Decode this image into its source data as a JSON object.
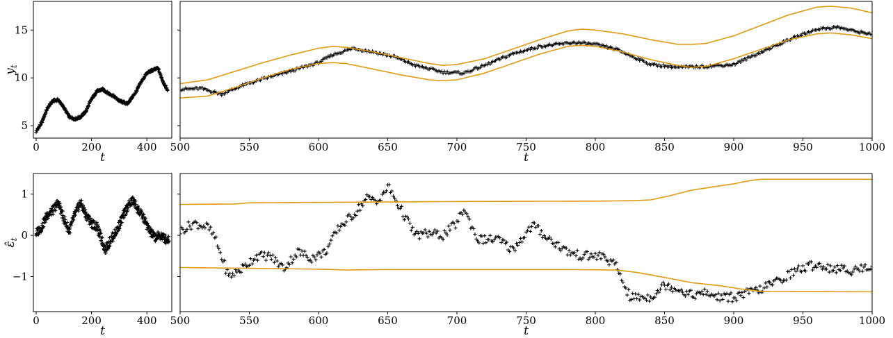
{
  "chart_data": [
    {
      "id": "top-left",
      "type": "scatter",
      "xlabel": "t",
      "ylabel": "y_t",
      "xlim": [
        -10,
        490
      ],
      "ylim": [
        3.7,
        18.0
      ],
      "xticks": [
        0,
        200,
        400
      ],
      "yticks": [
        5,
        10,
        15
      ],
      "series": [
        {
          "kind": "markers",
          "marker": "+",
          "color": "#000000",
          "anchors": [
            [
              0,
              4.4
            ],
            [
              20,
              5.3
            ],
            [
              40,
              6.8
            ],
            [
              60,
              7.6
            ],
            [
              80,
              7.7
            ],
            [
              100,
              6.9
            ],
            [
              120,
              5.9
            ],
            [
              140,
              5.7
            ],
            [
              160,
              5.9
            ],
            [
              180,
              6.5
            ],
            [
              200,
              7.8
            ],
            [
              220,
              8.6
            ],
            [
              240,
              8.8
            ],
            [
              260,
              8.4
            ],
            [
              280,
              8.1
            ],
            [
              300,
              7.6
            ],
            [
              330,
              7.3
            ],
            [
              360,
              8.5
            ],
            [
              380,
              9.6
            ],
            [
              400,
              10.5
            ],
            [
              420,
              10.8
            ],
            [
              440,
              11.0
            ],
            [
              460,
              9.5
            ],
            [
              475,
              8.7
            ]
          ]
        }
      ]
    },
    {
      "id": "top-right",
      "type": "scatter",
      "xlabel": "t",
      "ylabel": "",
      "xlim": [
        500,
        1000
      ],
      "ylim": [
        3.7,
        18.0
      ],
      "xticks": [
        500,
        550,
        600,
        650,
        700,
        750,
        800,
        850,
        900,
        950,
        1000
      ],
      "yticks": [
        5,
        10,
        15
      ],
      "series": [
        {
          "kind": "markers",
          "marker": "+",
          "color": "#000000",
          "anchors": [
            [
              500,
              8.8
            ],
            [
              515,
              8.9
            ],
            [
              530,
              8.3
            ],
            [
              545,
              9.2
            ],
            [
              560,
              9.9
            ],
            [
              575,
              10.5
            ],
            [
              600,
              11.6
            ],
            [
              610,
              12.4
            ],
            [
              625,
              13.1
            ],
            [
              640,
              12.7
            ],
            [
              655,
              12.2
            ],
            [
              670,
              11.3
            ],
            [
              690,
              10.6
            ],
            [
              705,
              10.5
            ],
            [
              720,
              11.3
            ],
            [
              740,
              12.5
            ],
            [
              760,
              13.3
            ],
            [
              785,
              13.7
            ],
            [
              800,
              13.5
            ],
            [
              815,
              13.0
            ],
            [
              840,
              11.4
            ],
            [
              860,
              11.1
            ],
            [
              880,
              11.2
            ],
            [
              900,
              11.4
            ],
            [
              920,
              12.7
            ],
            [
              940,
              14.0
            ],
            [
              960,
              15.1
            ],
            [
              975,
              15.3
            ],
            [
              990,
              14.8
            ],
            [
              1000,
              14.6
            ]
          ]
        },
        {
          "kind": "line",
          "color": "#e09a10",
          "anchors": [
            [
              500,
              9.4
            ],
            [
              520,
              9.8
            ],
            [
              540,
              10.7
            ],
            [
              560,
              11.6
            ],
            [
              580,
              12.4
            ],
            [
              600,
              13.1
            ],
            [
              610,
              13.3
            ],
            [
              620,
              13.2
            ],
            [
              640,
              12.7
            ],
            [
              660,
              12.1
            ],
            [
              680,
              11.5
            ],
            [
              690,
              11.3
            ],
            [
              700,
              11.4
            ],
            [
              720,
              12.0
            ],
            [
              740,
              13.0
            ],
            [
              760,
              14.0
            ],
            [
              780,
              14.9
            ],
            [
              790,
              15.1
            ],
            [
              800,
              15.0
            ],
            [
              820,
              14.6
            ],
            [
              840,
              14.0
            ],
            [
              860,
              13.5
            ],
            [
              870,
              13.5
            ],
            [
              880,
              13.6
            ],
            [
              900,
              14.4
            ],
            [
              920,
              15.5
            ],
            [
              940,
              16.6
            ],
            [
              960,
              17.4
            ],
            [
              970,
              17.5
            ],
            [
              985,
              17.3
            ],
            [
              1000,
              16.8
            ]
          ]
        },
        {
          "kind": "line",
          "color": "#e09a10",
          "anchors": [
            [
              500,
              7.9
            ],
            [
              520,
              8.1
            ],
            [
              540,
              9.0
            ],
            [
              560,
              10.0
            ],
            [
              580,
              10.9
            ],
            [
              600,
              11.5
            ],
            [
              610,
              11.6
            ],
            [
              620,
              11.5
            ],
            [
              640,
              10.9
            ],
            [
              660,
              10.3
            ],
            [
              680,
              9.8
            ],
            [
              690,
              9.7
            ],
            [
              700,
              9.8
            ],
            [
              720,
              10.5
            ],
            [
              740,
              11.5
            ],
            [
              760,
              12.5
            ],
            [
              780,
              13.3
            ],
            [
              790,
              13.4
            ],
            [
              800,
              13.3
            ],
            [
              820,
              12.7
            ],
            [
              840,
              11.9
            ],
            [
              860,
              11.3
            ],
            [
              870,
              11.1
            ],
            [
              880,
              11.2
            ],
            [
              900,
              12.0
            ],
            [
              920,
              13.0
            ],
            [
              940,
              14.0
            ],
            [
              960,
              14.6
            ],
            [
              970,
              14.7
            ],
            [
              985,
              14.5
            ],
            [
              1000,
              14.1
            ]
          ]
        }
      ]
    },
    {
      "id": "bottom-left",
      "type": "scatter",
      "xlabel": "t",
      "ylabel": "ε̂_t",
      "xlim": [
        -10,
        490
      ],
      "ylim": [
        -1.85,
        1.5
      ],
      "xticks": [
        0,
        200,
        400
      ],
      "yticks": [
        -1,
        0,
        1
      ],
      "series": [
        {
          "kind": "markers",
          "marker": "+",
          "color": "#000000",
          "anchors": [
            [
              0,
              0.05
            ],
            [
              20,
              0.2
            ],
            [
              40,
              0.5
            ],
            [
              60,
              0.6
            ],
            [
              80,
              0.8
            ],
            [
              100,
              0.4
            ],
            [
              120,
              0.1
            ],
            [
              140,
              0.5
            ],
            [
              160,
              0.8
            ],
            [
              180,
              0.5
            ],
            [
              200,
              0.3
            ],
            [
              220,
              0.2
            ],
            [
              250,
              -0.35
            ],
            [
              270,
              -0.1
            ],
            [
              290,
              0.1
            ],
            [
              310,
              0.4
            ],
            [
              330,
              0.7
            ],
            [
              350,
              0.85
            ],
            [
              370,
              0.6
            ],
            [
              390,
              0.4
            ],
            [
              410,
              0.1
            ],
            [
              430,
              -0.05
            ],
            [
              450,
              0.0
            ],
            [
              470,
              -0.1
            ],
            [
              480,
              -0.1
            ]
          ]
        }
      ]
    },
    {
      "id": "bottom-right",
      "type": "scatter",
      "xlabel": "t",
      "ylabel": "",
      "xlim": [
        500,
        1000
      ],
      "ylim": [
        -1.85,
        1.5
      ],
      "xticks": [
        500,
        550,
        600,
        650,
        700,
        750,
        800,
        850,
        900,
        950,
        1000
      ],
      "yticks": [
        -1,
        0,
        1
      ],
      "series": [
        {
          "kind": "markers",
          "marker": "+",
          "color": "#000000",
          "anchors": [
            [
              500,
              0.1
            ],
            [
              510,
              0.3
            ],
            [
              520,
              0.2
            ],
            [
              525,
              -0.05
            ],
            [
              535,
              -1.0
            ],
            [
              545,
              -0.8
            ],
            [
              555,
              -0.5
            ],
            [
              565,
              -0.5
            ],
            [
              575,
              -0.8
            ],
            [
              585,
              -0.4
            ],
            [
              595,
              -0.55
            ],
            [
              605,
              -0.4
            ],
            [
              615,
              0.2
            ],
            [
              625,
              0.5
            ],
            [
              635,
              0.9
            ],
            [
              645,
              0.85
            ],
            [
              650,
              1.2
            ],
            [
              660,
              0.6
            ],
            [
              670,
              0.0
            ],
            [
              680,
              0.05
            ],
            [
              690,
              0.0
            ],
            [
              700,
              0.3
            ],
            [
              705,
              0.65
            ],
            [
              715,
              -0.1
            ],
            [
              730,
              -0.1
            ],
            [
              740,
              -0.35
            ],
            [
              755,
              0.25
            ],
            [
              765,
              -0.05
            ],
            [
              780,
              -0.4
            ],
            [
              790,
              -0.5
            ],
            [
              805,
              -0.5
            ],
            [
              815,
              -0.75
            ],
            [
              825,
              -1.5
            ],
            [
              840,
              -1.5
            ],
            [
              850,
              -1.2
            ],
            [
              860,
              -1.3
            ],
            [
              870,
              -1.45
            ],
            [
              880,
              -1.4
            ],
            [
              890,
              -1.5
            ],
            [
              900,
              -1.5
            ],
            [
              910,
              -1.4
            ],
            [
              920,
              -1.3
            ],
            [
              935,
              -1.05
            ],
            [
              945,
              -0.85
            ],
            [
              960,
              -0.7
            ],
            [
              970,
              -0.8
            ],
            [
              985,
              -0.85
            ],
            [
              1000,
              -0.75
            ]
          ]
        },
        {
          "kind": "line",
          "color": "#e09a10",
          "anchors": [
            [
              500,
              0.75
            ],
            [
              540,
              0.76
            ],
            [
              550,
              0.79
            ],
            [
              600,
              0.8
            ],
            [
              700,
              0.82
            ],
            [
              800,
              0.83
            ],
            [
              825,
              0.84
            ],
            [
              840,
              0.86
            ],
            [
              855,
              0.97
            ],
            [
              870,
              1.1
            ],
            [
              880,
              1.15
            ],
            [
              900,
              1.25
            ],
            [
              912,
              1.33
            ],
            [
              920,
              1.36
            ],
            [
              1000,
              1.36
            ]
          ]
        },
        {
          "kind": "line",
          "color": "#e09a10",
          "anchors": [
            [
              500,
              -0.78
            ],
            [
              550,
              -0.8
            ],
            [
              600,
              -0.82
            ],
            [
              620,
              -0.84
            ],
            [
              650,
              -0.83
            ],
            [
              700,
              -0.83
            ],
            [
              780,
              -0.83
            ],
            [
              815,
              -0.84
            ],
            [
              830,
              -0.9
            ],
            [
              850,
              -1.02
            ],
            [
              870,
              -1.15
            ],
            [
              890,
              -1.22
            ],
            [
              905,
              -1.3
            ],
            [
              920,
              -1.36
            ],
            [
              1000,
              -1.37
            ]
          ]
        }
      ]
    }
  ]
}
